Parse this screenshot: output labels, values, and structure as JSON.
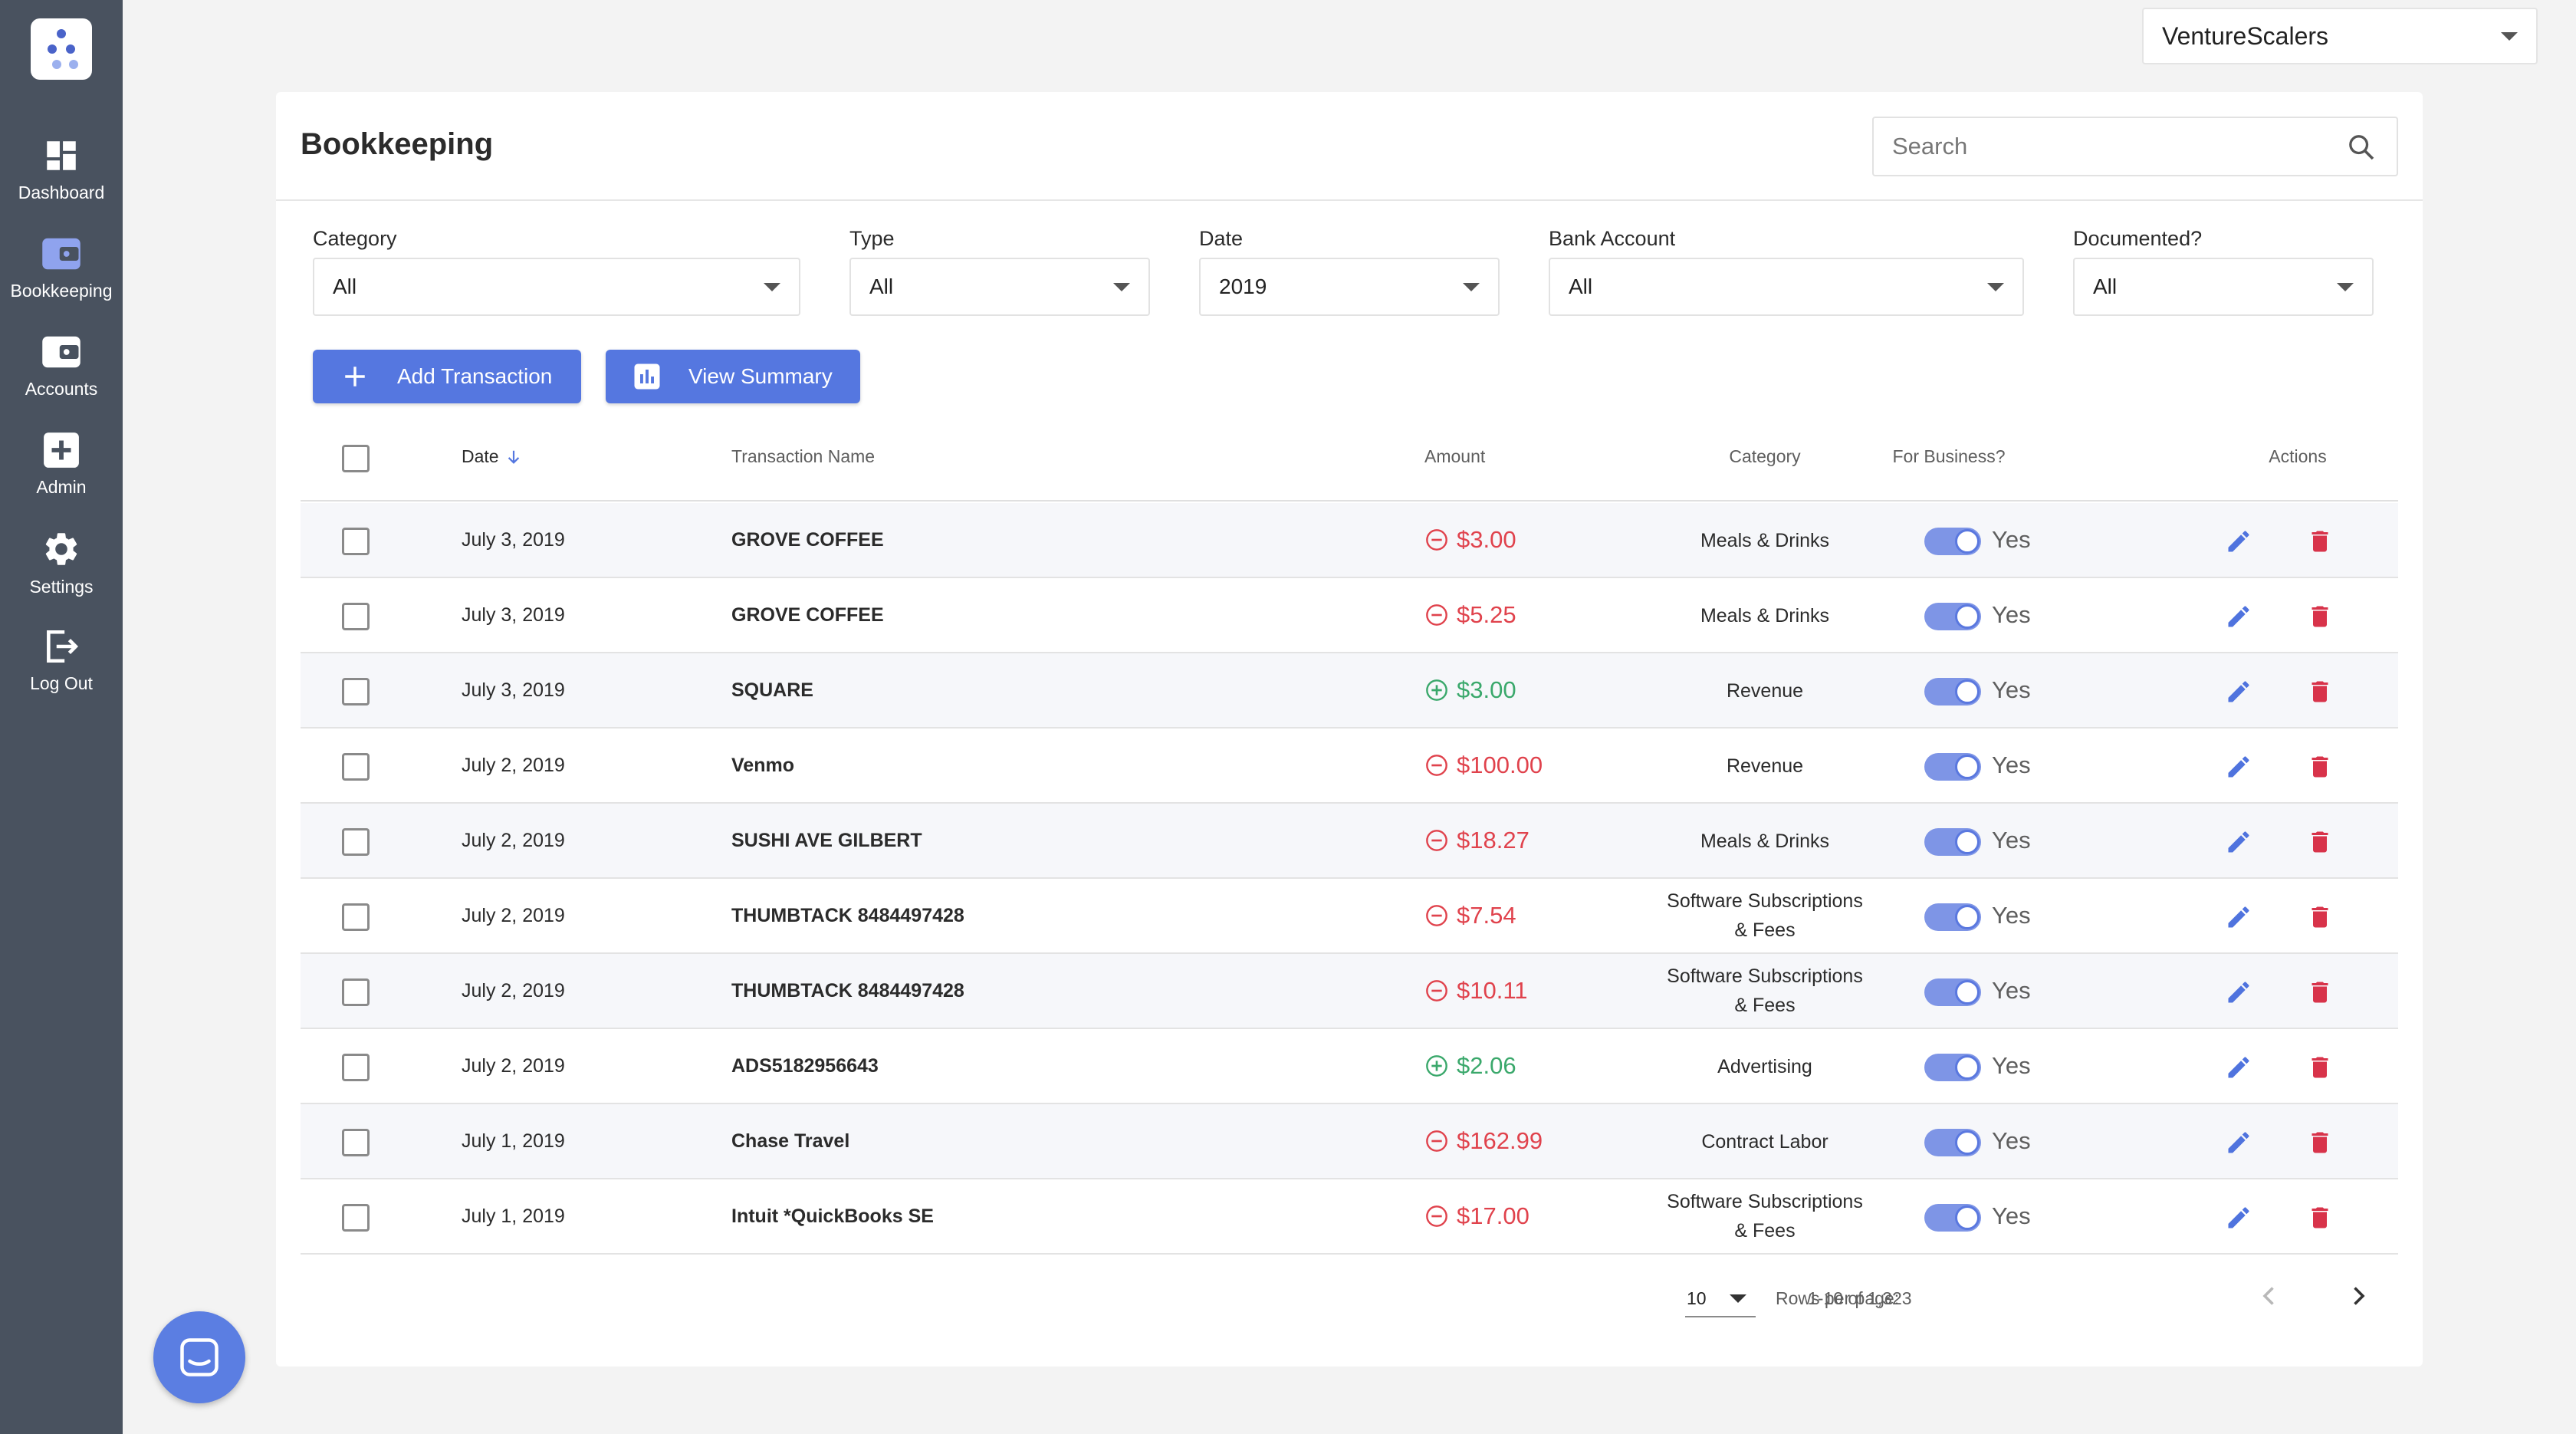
{
  "sidebar": {
    "items": [
      {
        "label": "Dashboard",
        "icon": "dashboard-icon"
      },
      {
        "label": "Bookkeeping",
        "icon": "wallet-icon"
      },
      {
        "label": "Accounts",
        "icon": "wallet-icon"
      },
      {
        "label": "Admin",
        "icon": "plus-box-icon"
      },
      {
        "label": "Settings",
        "icon": "gear-icon"
      },
      {
        "label": "Log Out",
        "icon": "logout-icon"
      }
    ],
    "active": "Bookkeeping"
  },
  "workspace": {
    "selected": "VentureScalers"
  },
  "header": {
    "title": "Bookkeeping",
    "search_placeholder": "Search"
  },
  "filters": [
    {
      "label": "Category",
      "value": "All"
    },
    {
      "label": "Type",
      "value": "All"
    },
    {
      "label": "Date",
      "value": "2019"
    },
    {
      "label": "Bank Account",
      "value": "All"
    },
    {
      "label": "Documented?",
      "value": "All"
    }
  ],
  "actions": {
    "add_label": "Add Transaction",
    "summary_label": "View Summary"
  },
  "table": {
    "columns": [
      "Date",
      "Transaction Name",
      "Amount",
      "Category",
      "For Business?",
      "Actions"
    ],
    "sort": {
      "column": "Date",
      "direction": "desc"
    },
    "rows": [
      {
        "date": "July 3, 2019",
        "name": "GROVE COFFEE",
        "amount": "$3.00",
        "type": "expense",
        "category": [
          "Meals & Drinks"
        ],
        "business": "Yes"
      },
      {
        "date": "July 3, 2019",
        "name": "GROVE COFFEE",
        "amount": "$5.25",
        "type": "expense",
        "category": [
          "Meals & Drinks"
        ],
        "business": "Yes"
      },
      {
        "date": "July 3, 2019",
        "name": "SQUARE",
        "amount": "$3.00",
        "type": "income",
        "category": [
          "Revenue"
        ],
        "business": "Yes"
      },
      {
        "date": "July 2, 2019",
        "name": "Venmo",
        "amount": "$100.00",
        "type": "expense",
        "category": [
          "Revenue"
        ],
        "business": "Yes"
      },
      {
        "date": "July 2, 2019",
        "name": "SUSHI AVE GILBERT",
        "amount": "$18.27",
        "type": "expense",
        "category": [
          "Meals & Drinks"
        ],
        "business": "Yes"
      },
      {
        "date": "July 2, 2019",
        "name": "THUMBTACK 8484497428",
        "amount": "$7.54",
        "type": "expense",
        "category": [
          "Software Subscriptions",
          "& Fees"
        ],
        "business": "Yes"
      },
      {
        "date": "July 2, 2019",
        "name": "THUMBTACK 8484497428",
        "amount": "$10.11",
        "type": "expense",
        "category": [
          "Software Subscriptions",
          "& Fees"
        ],
        "business": "Yes"
      },
      {
        "date": "July 2, 2019",
        "name": "ADS5182956643",
        "amount": "$2.06",
        "type": "income",
        "category": [
          "Advertising"
        ],
        "business": "Yes"
      },
      {
        "date": "July 1, 2019",
        "name": "Chase Travel",
        "amount": "$162.99",
        "type": "expense",
        "category": [
          "Contract Labor"
        ],
        "business": "Yes"
      },
      {
        "date": "July 1, 2019",
        "name": "Intuit *QuickBooks SE",
        "amount": "$17.00",
        "type": "expense",
        "category": [
          "Software Subscriptions",
          "& Fees"
        ],
        "business": "Yes"
      }
    ]
  },
  "pagination": {
    "rows_label": "Rows per page:",
    "rows_value": "10",
    "range": "1-10 of 1,323"
  },
  "colors": {
    "sidebar": "#49525f",
    "accent": "#5577e0",
    "negative": "#e0424c",
    "positive": "#3aa86b",
    "delete": "#d8334a"
  }
}
